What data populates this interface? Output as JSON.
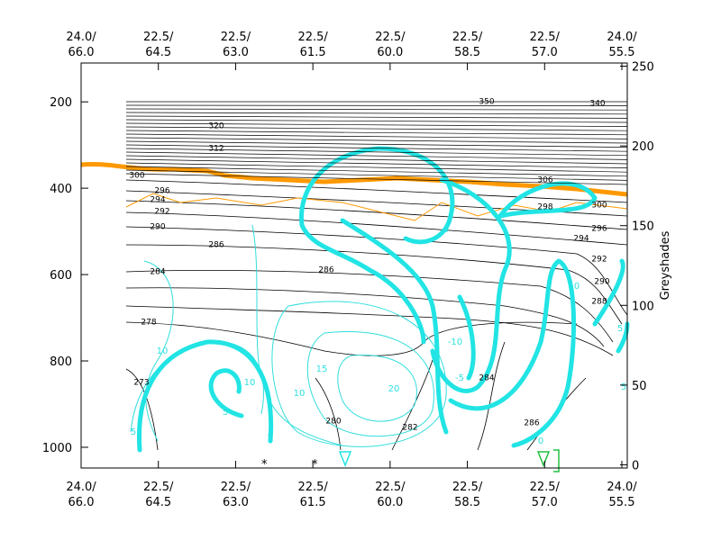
{
  "chart_data": {
    "type": "contour",
    "xlim": [
      0,
      7.07
    ],
    "xticks": [
      {
        "value": 0,
        "label": "24.0/",
        "sublabel": "66.0"
      },
      {
        "value": 1,
        "label": "22.5/",
        "sublabel": "64.5"
      },
      {
        "value": 2,
        "label": "22.5/",
        "sublabel": "63.0"
      },
      {
        "value": 3,
        "label": "22.5/",
        "sublabel": "61.5"
      },
      {
        "value": 4,
        "label": "22.5/",
        "sublabel": "60.0"
      },
      {
        "value": 5,
        "label": "22.5/",
        "sublabel": "58.5"
      },
      {
        "value": 6,
        "label": "22.5/",
        "sublabel": "57.0"
      },
      {
        "value": 7,
        "label": "24.0/",
        "sublabel": "55.5"
      }
    ],
    "ylim": [
      1048,
      110
    ],
    "yticks": [
      200,
      400,
      600,
      800,
      1000
    ],
    "y2label": "Greyshades",
    "y2lim": [
      -2,
      252
    ],
    "y2ticks": [
      0,
      50,
      100,
      150,
      200,
      250
    ],
    "theta_labels": [
      350,
      340,
      320,
      312,
      306,
      300,
      296,
      294,
      292,
      290,
      286,
      284,
      278,
      273,
      280,
      282,
      284,
      286,
      298,
      300,
      296,
      294,
      292,
      290,
      288,
      286
    ],
    "wind_labels": [
      10,
      10,
      15,
      20,
      10,
      5,
      5,
      0,
      -5,
      -10,
      0,
      0,
      0,
      5,
      5
    ]
  }
}
